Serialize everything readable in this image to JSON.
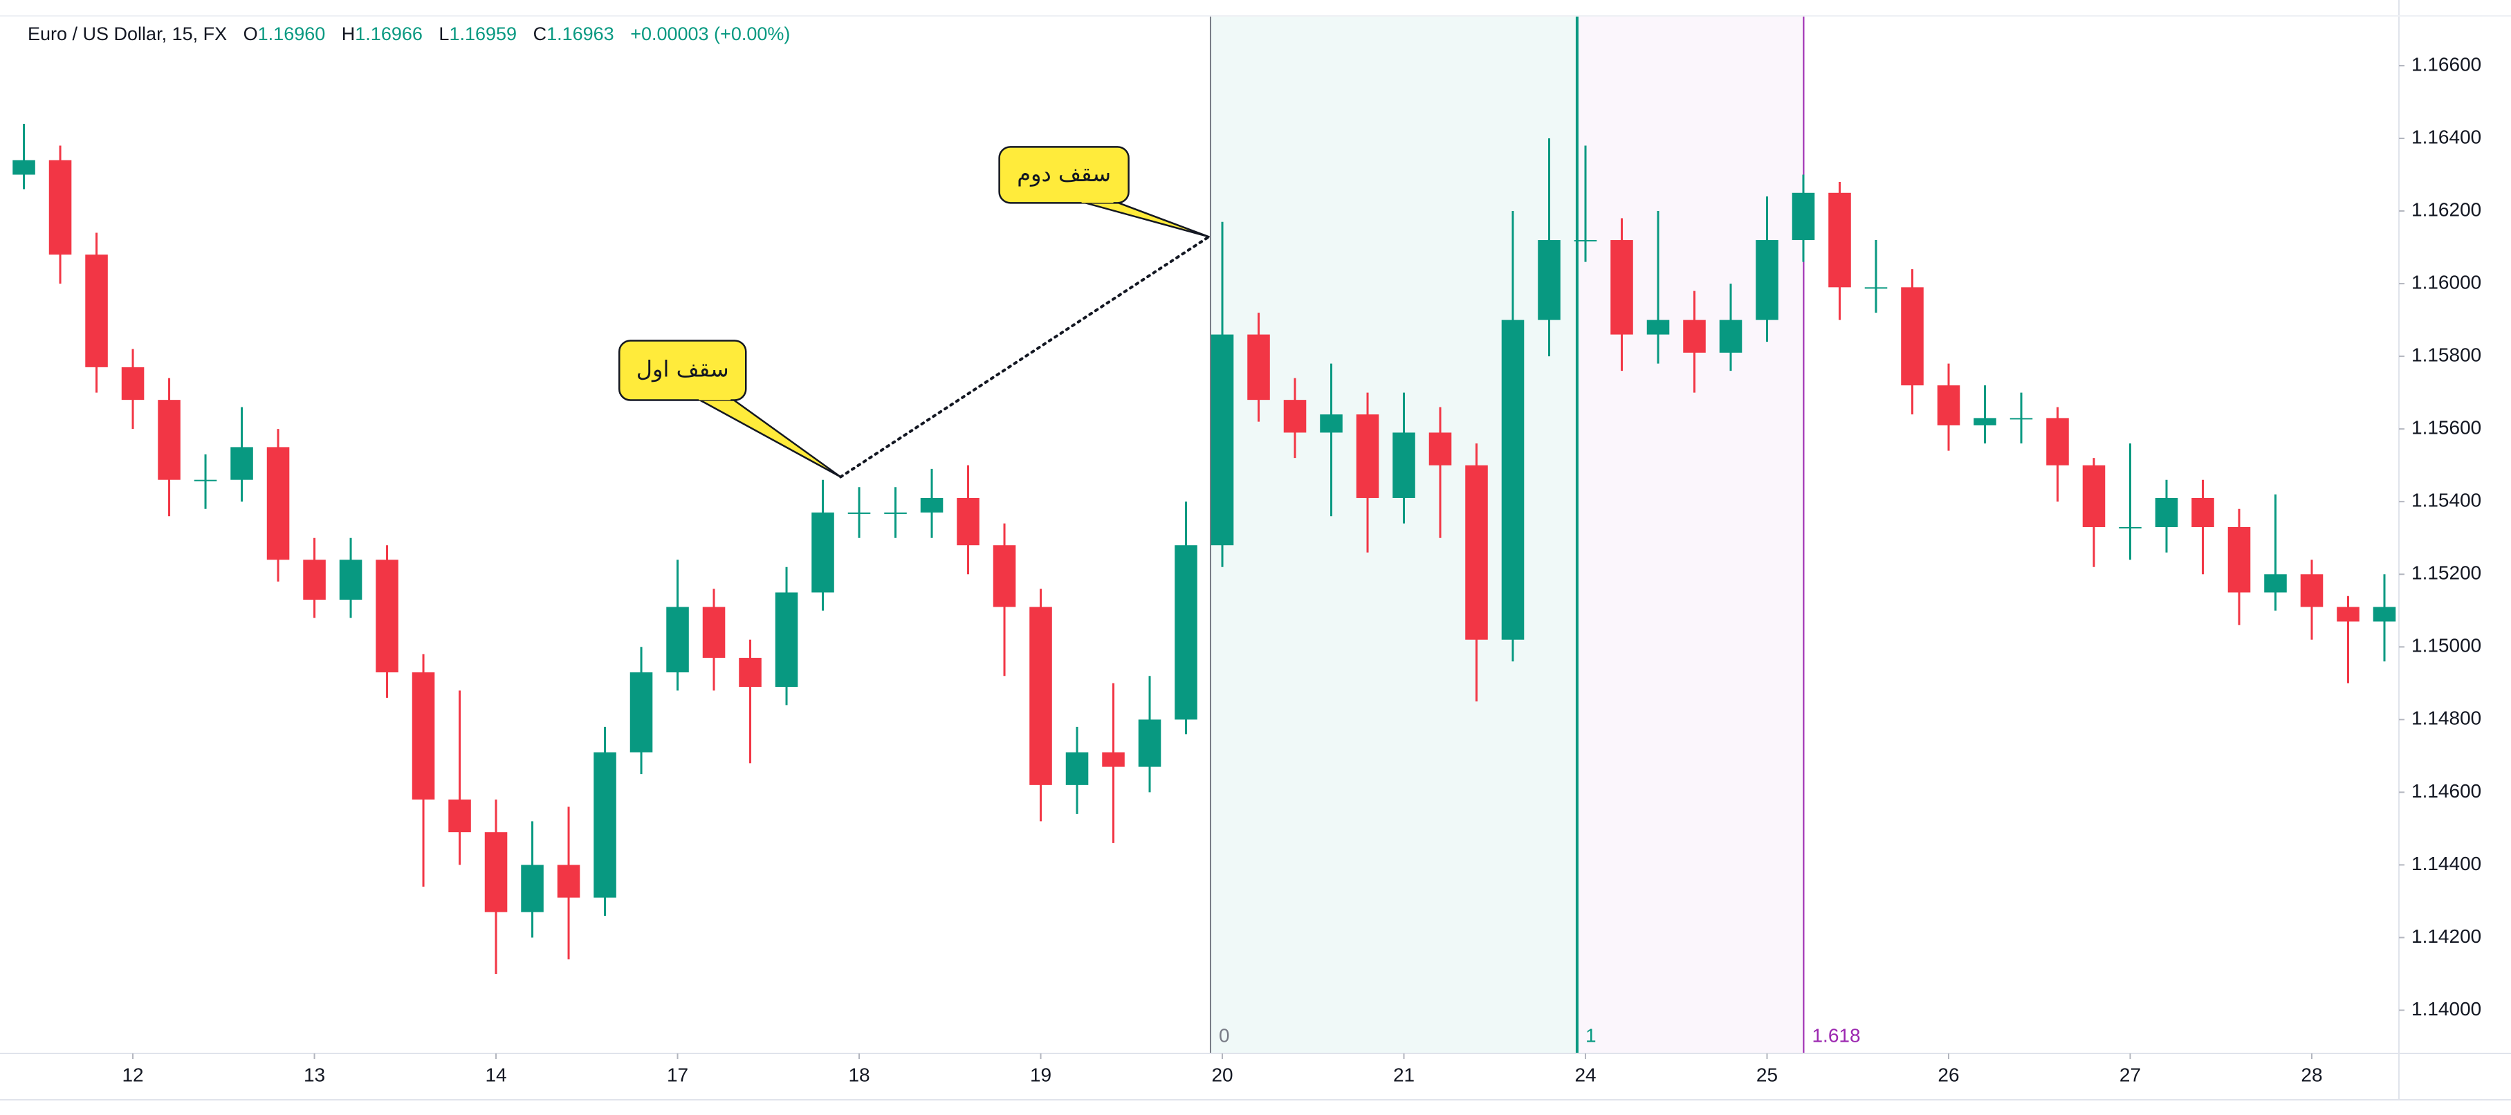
{
  "chart_data": {
    "type": "candlestick",
    "header": {
      "symbol": "Euro / US Dollar, 15, FX",
      "o_label": "O",
      "open": "1.16960",
      "h_label": "H",
      "high": "1.16966",
      "l_label": "L",
      "low": "1.16959",
      "c_label": "C",
      "close": "1.16963",
      "change": "+0.00003 (+0.00%)"
    },
    "x": [
      -0.6,
      -0.4,
      -0.2,
      0,
      0.2,
      0.4,
      0.6,
      0.8,
      1,
      1.2,
      1.4,
      1.6,
      1.8,
      2,
      2.2,
      2.4,
      2.6,
      2.8,
      3,
      3.2,
      3.4,
      3.6,
      3.8,
      4,
      4.2,
      4.4,
      4.6,
      4.8,
      5,
      5.2,
      5.4,
      5.6,
      5.8,
      6,
      6.2,
      6.4,
      6.6,
      6.8,
      7,
      7.2,
      7.4,
      7.6,
      7.8,
      8,
      8.2,
      8.4,
      8.6,
      8.8,
      9,
      9.2,
      9.4,
      9.6,
      9.8,
      10,
      10.2,
      10.4,
      10.6,
      10.8,
      11,
      11.2,
      11.4,
      11.6,
      11.8,
      12,
      12.2,
      12.4
    ],
    "open": [
      1.163,
      1.1634,
      1.1608,
      1.1577,
      1.1568,
      1.1546,
      1.1546,
      1.1555,
      1.1524,
      1.1513,
      1.1524,
      1.1493,
      1.1458,
      1.1449,
      1.1427,
      1.144,
      1.1431,
      1.1471,
      1.1493,
      1.1511,
      1.1497,
      1.1489,
      1.1515,
      1.1537,
      1.1537,
      1.1537,
      1.1541,
      1.1528,
      1.1511,
      1.1462,
      1.1471,
      1.1467,
      1.148,
      1.1528,
      1.1586,
      1.1568,
      1.1559,
      1.1564,
      1.1541,
      1.1559,
      1.155,
      1.1502,
      1.159,
      1.1612,
      1.1612,
      1.1586,
      1.159,
      1.1581,
      1.159,
      1.1612,
      1.1625,
      1.1599,
      1.1599,
      1.1572,
      1.1561,
      1.1563,
      1.1563,
      1.155,
      1.1533,
      1.1533,
      1.1541,
      1.1533,
      1.1515,
      1.152,
      1.1511,
      1.1507
    ],
    "high": [
      1.1644,
      1.1638,
      1.1614,
      1.1582,
      1.1574,
      1.1553,
      1.1566,
      1.156,
      1.153,
      1.153,
      1.1528,
      1.1498,
      1.1488,
      1.1458,
      1.1452,
      1.1456,
      1.1478,
      1.15,
      1.1524,
      1.1516,
      1.1502,
      1.1522,
      1.1546,
      1.1544,
      1.1544,
      1.1549,
      1.155,
      1.1534,
      1.1516,
      1.1478,
      1.149,
      1.1492,
      1.154,
      1.1617,
      1.1592,
      1.1574,
      1.1578,
      1.157,
      1.157,
      1.1566,
      1.1556,
      1.162,
      1.164,
      1.1638,
      1.1618,
      1.162,
      1.1598,
      1.16,
      1.1624,
      1.163,
      1.1628,
      1.1612,
      1.1604,
      1.1578,
      1.1572,
      1.157,
      1.1566,
      1.1552,
      1.1556,
      1.1546,
      1.1546,
      1.1538,
      1.1542,
      1.1524,
      1.1514,
      1.152
    ],
    "low": [
      1.1626,
      1.16,
      1.157,
      1.156,
      1.1536,
      1.1538,
      1.154,
      1.1518,
      1.1508,
      1.1508,
      1.1486,
      1.1434,
      1.144,
      1.141,
      1.142,
      1.1414,
      1.1426,
      1.1465,
      1.1488,
      1.1488,
      1.1468,
      1.1484,
      1.151,
      1.153,
      1.153,
      1.153,
      1.152,
      1.1492,
      1.1452,
      1.1454,
      1.1446,
      1.146,
      1.1476,
      1.1522,
      1.1562,
      1.1552,
      1.1536,
      1.1526,
      1.1534,
      1.153,
      1.1485,
      1.1496,
      1.158,
      1.1606,
      1.1576,
      1.1578,
      1.157,
      1.1576,
      1.1584,
      1.1606,
      1.159,
      1.1592,
      1.1564,
      1.1554,
      1.1556,
      1.1556,
      1.154,
      1.1522,
      1.1524,
      1.1526,
      1.152,
      1.1506,
      1.151,
      1.1502,
      1.149,
      1.1496
    ],
    "close": [
      1.1634,
      1.1608,
      1.1577,
      1.1568,
      1.1546,
      1.1546,
      1.1555,
      1.1524,
      1.1513,
      1.1524,
      1.1493,
      1.1458,
      1.1449,
      1.1427,
      1.144,
      1.1431,
      1.1471,
      1.1493,
      1.1511,
      1.1497,
      1.1489,
      1.1515,
      1.1537,
      1.1537,
      1.1537,
      1.1541,
      1.1528,
      1.1511,
      1.1462,
      1.1471,
      1.1467,
      1.148,
      1.1528,
      1.1586,
      1.1568,
      1.1559,
      1.1564,
      1.1541,
      1.1559,
      1.155,
      1.1502,
      1.159,
      1.1612,
      1.1612,
      1.1586,
      1.159,
      1.1581,
      1.159,
      1.1612,
      1.1625,
      1.1599,
      1.1599,
      1.1572,
      1.1561,
      1.1563,
      1.1563,
      1.155,
      1.1533,
      1.1533,
      1.1541,
      1.1533,
      1.1515,
      1.152,
      1.1511,
      1.1507,
      1.1511
    ],
    "up_color": "#089981",
    "down_color": "#f23645",
    "xlim": [
      -0.644,
      12.48
    ],
    "ylim": [
      1.13881,
      1.16737
    ],
    "xticks": [
      {
        "value": 0,
        "label": "12"
      },
      {
        "value": 1,
        "label": "13"
      },
      {
        "value": 2,
        "label": "14"
      },
      {
        "value": 3,
        "label": "17"
      },
      {
        "value": 4,
        "label": "18"
      },
      {
        "value": 5,
        "label": "19"
      },
      {
        "value": 6,
        "label": "20"
      },
      {
        "value": 7,
        "label": "21"
      },
      {
        "value": 8,
        "label": "24"
      },
      {
        "value": 9,
        "label": "25"
      },
      {
        "value": 10,
        "label": "26"
      },
      {
        "value": 11,
        "label": "27"
      },
      {
        "value": 12,
        "label": "28"
      }
    ],
    "yticks": [
      {
        "value": 1.14,
        "label": "1.14000"
      },
      {
        "value": 1.142,
        "label": "1.14200"
      },
      {
        "value": 1.144,
        "label": "1.14400"
      },
      {
        "value": 1.146,
        "label": "1.14600"
      },
      {
        "value": 1.148,
        "label": "1.14800"
      },
      {
        "value": 1.15,
        "label": "1.15000"
      },
      {
        "value": 1.152,
        "label": "1.15200"
      },
      {
        "value": 1.154,
        "label": "1.15400"
      },
      {
        "value": 1.156,
        "label": "1.15600"
      },
      {
        "value": 1.158,
        "label": "1.15800"
      },
      {
        "value": 1.16,
        "label": "1.16000"
      },
      {
        "value": 1.162,
        "label": "1.16200"
      },
      {
        "value": 1.164,
        "label": "1.16400"
      },
      {
        "value": 1.166,
        "label": "1.16600"
      }
    ],
    "fib_time_zone": {
      "x_start": 5.935,
      "x_end": 7.954,
      "levels": [
        {
          "level": 0,
          "color": "#787b86"
        },
        {
          "level": 1,
          "color": "#089981"
        },
        {
          "level": 1.618,
          "color": "#9c27b0"
        }
      ]
    },
    "annotations": [
      {
        "text": "سقف اول",
        "x": 3.898,
        "y": 1.15468
      },
      {
        "text": "سقف دوم",
        "x": 5.926,
        "y": 1.16129
      }
    ]
  }
}
